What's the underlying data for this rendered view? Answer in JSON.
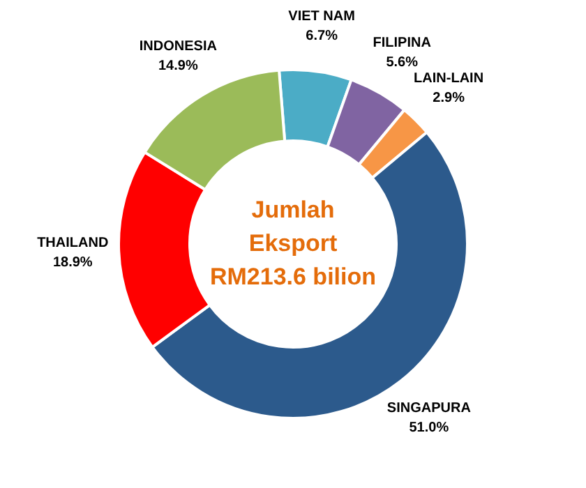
{
  "chart_data": {
    "type": "donut",
    "categories": [
      "VIET NAM",
      "FILIPINA",
      "LAIN-LAIN",
      "SINGAPURA",
      "THAILAND",
      "INDONESIA"
    ],
    "values": [
      6.7,
      5.6,
      2.9,
      51.0,
      18.9,
      14.9
    ],
    "value_labels": [
      "6.7%",
      "5.6%",
      "2.9%",
      "51.0%",
      "18.9%",
      "14.9%"
    ],
    "colors": [
      "#4bacc6",
      "#8064a2",
      "#f79646",
      "#2c5a8c",
      "#ff0000",
      "#9bbb59"
    ],
    "annotations": [
      "Jumlah",
      "Eksport",
      "RM213.6 bilion"
    ]
  }
}
